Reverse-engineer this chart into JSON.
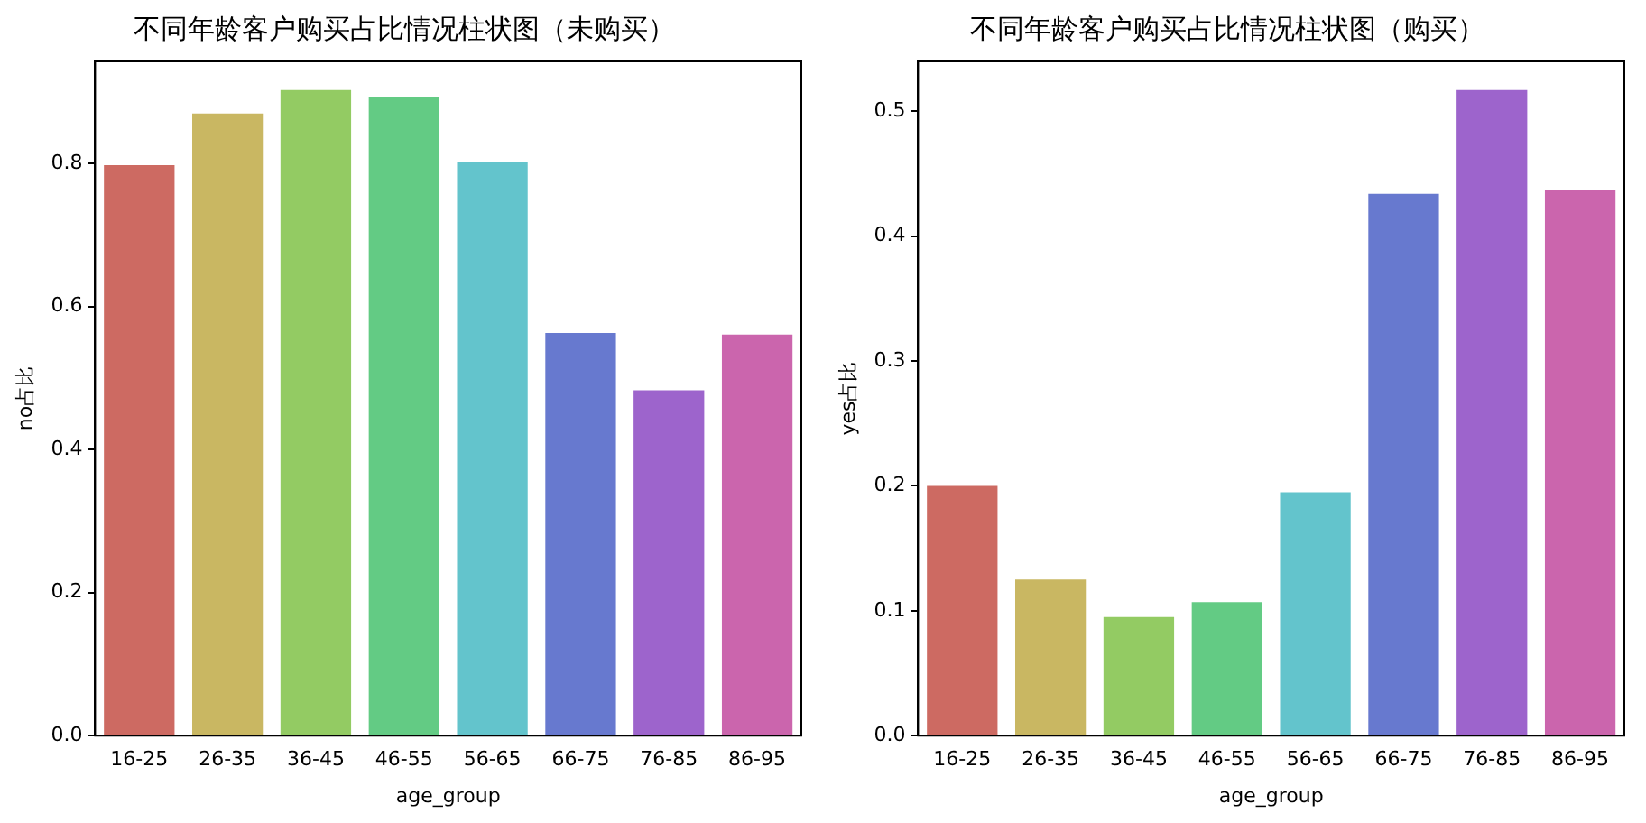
{
  "chart_data": [
    {
      "type": "bar",
      "title": "不同年龄客户购买占比情况柱状图（未购买）",
      "xlabel": "age_group",
      "ylabel": "no占比",
      "categories": [
        "16-25",
        "26-35",
        "36-45",
        "46-55",
        "56-65",
        "66-75",
        "76-85",
        "86-95"
      ],
      "values": [
        0.798,
        0.87,
        0.903,
        0.893,
        0.802,
        0.563,
        0.483,
        0.561
      ],
      "colors": [
        "#cd6a62",
        "#c9b762",
        "#93cb63",
        "#63cb84",
        "#63c4cc",
        "#6779cf",
        "#9d64cc",
        "#cb65ad"
      ],
      "ylim": [
        0,
        0.943
      ],
      "yticks": [
        {
          "value": 0,
          "label": "0.0"
        },
        {
          "value": 0.2,
          "label": "0.2"
        },
        {
          "value": 0.4,
          "label": "0.4"
        },
        {
          "value": 0.6,
          "label": "0.6"
        },
        {
          "value": 0.8,
          "label": "0.8"
        }
      ],
      "grid": false,
      "legend": false
    },
    {
      "type": "bar",
      "title": "不同年龄客户购买占比情况柱状图（购买）",
      "xlabel": "age_group",
      "ylabel": "yes占比",
      "categories": [
        "16-25",
        "26-35",
        "36-45",
        "46-55",
        "56-65",
        "66-75",
        "76-85",
        "86-95"
      ],
      "values": [
        0.2,
        0.125,
        0.095,
        0.107,
        0.195,
        0.434,
        0.517,
        0.437
      ],
      "colors": [
        "#cd6a62",
        "#c9b762",
        "#93cb63",
        "#63cb84",
        "#63c4cc",
        "#6779cf",
        "#9d64cc",
        "#cb65ad"
      ],
      "ylim": [
        0,
        0.54
      ],
      "yticks": [
        {
          "value": 0,
          "label": "0.0"
        },
        {
          "value": 0.1,
          "label": "0.1"
        },
        {
          "value": 0.2,
          "label": "0.2"
        },
        {
          "value": 0.3,
          "label": "0.3"
        },
        {
          "value": 0.4,
          "label": "0.4"
        },
        {
          "value": 0.5,
          "label": "0.5"
        }
      ],
      "grid": false,
      "legend": false
    }
  ]
}
